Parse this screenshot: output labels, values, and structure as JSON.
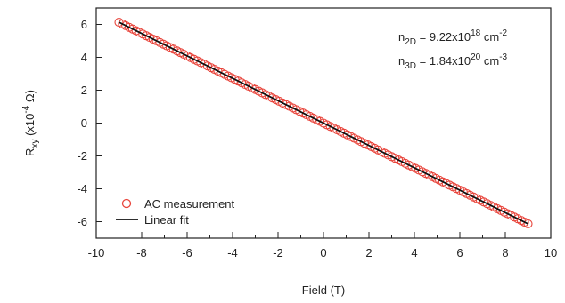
{
  "chart_data": {
    "type": "scatter",
    "xlabel": "Field (T)",
    "ylabel": {
      "base": "R",
      "sub": "xy",
      "paren_open": " (x10",
      "sup": "-4",
      "unit": " Ω)"
    },
    "xlim": [
      -10,
      10
    ],
    "ylim": [
      -7,
      7
    ],
    "xticks": [
      -10,
      -8,
      -6,
      -4,
      -2,
      0,
      2,
      4,
      6,
      8,
      10
    ],
    "yticks": [
      -6,
      -4,
      -2,
      0,
      2,
      4,
      6
    ],
    "grid": false,
    "legend_position": "bottom-left",
    "series": [
      {
        "name": "AC measurement",
        "kind": "markers",
        "marker": "open-circle",
        "color": "#e8453c",
        "x_start": -9,
        "x_end": 9,
        "x_step": 0.15,
        "slope": -0.6811,
        "intercept": 0.0
      },
      {
        "name": "Linear fit",
        "kind": "line",
        "color": "#111111",
        "x": [
          -9,
          9
        ],
        "y": [
          6.13,
          -6.13
        ]
      }
    ],
    "annotations": [
      {
        "prefix": "n",
        "sub": "2D",
        "mid": " = 9.22x10",
        "sup": "18",
        "unit": " cm",
        "unit_sup": "-2"
      },
      {
        "prefix": "n",
        "sub": "3D",
        "mid": " = 1.84x10",
        "sup": "20",
        "unit": " cm",
        "unit_sup": "-3"
      }
    ]
  }
}
